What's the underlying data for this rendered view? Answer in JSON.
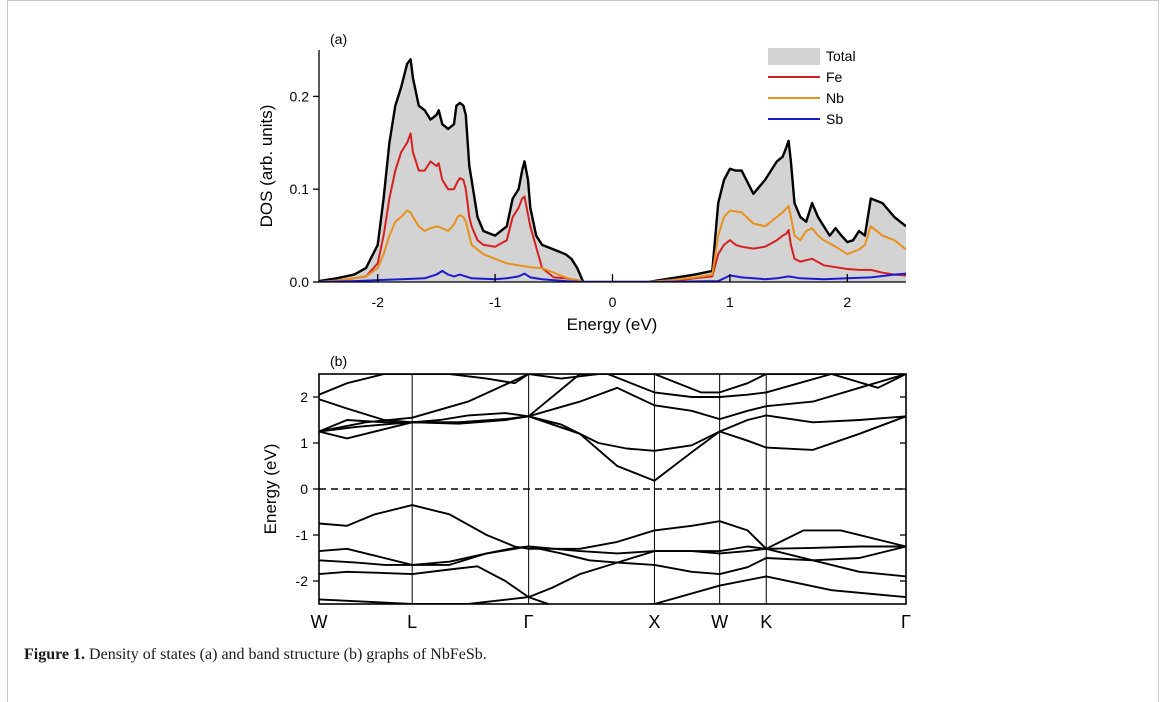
{
  "caption": {
    "label": "Figure 1.",
    "text": " Density of states (a) and band structure (b) graphs of NbFeSb."
  },
  "chart_data": [
    {
      "type": "area",
      "panel_label": "(a)",
      "xlabel": "Energy (eV)",
      "ylabel": "DOS (arb. units)",
      "xlim": [
        -2.5,
        2.5
      ],
      "ylim": [
        0,
        0.25
      ],
      "xticks": [
        -2,
        -1,
        0,
        1,
        2
      ],
      "xtick_labels": [
        "-2",
        "-1",
        "0",
        "1",
        "2"
      ],
      "yticks": [
        0.0,
        0.1,
        0.2
      ],
      "ytick_labels": [
        "0.0",
        "0.1",
        "0.2"
      ],
      "legend_position": "top-right",
      "series": [
        {
          "name": "Total",
          "color": "#000000",
          "fill": "#d3d3d3",
          "x": [
            -2.5,
            -2.35,
            -2.2,
            -2.1,
            -2.0,
            -1.95,
            -1.9,
            -1.85,
            -1.8,
            -1.75,
            -1.72,
            -1.7,
            -1.65,
            -1.6,
            -1.55,
            -1.5,
            -1.48,
            -1.45,
            -1.4,
            -1.35,
            -1.33,
            -1.3,
            -1.27,
            -1.25,
            -1.22,
            -1.2,
            -1.15,
            -1.1,
            -1.0,
            -0.9,
            -0.85,
            -0.8,
            -0.77,
            -0.75,
            -0.72,
            -0.7,
            -0.65,
            -0.6,
            -0.5,
            -0.4,
            -0.35,
            -0.3,
            -0.25,
            0.3,
            0.5,
            0.7,
            0.85,
            0.9,
            0.95,
            1.0,
            1.05,
            1.1,
            1.2,
            1.3,
            1.4,
            1.45,
            1.48,
            1.5,
            1.52,
            1.55,
            1.6,
            1.65,
            1.7,
            1.75,
            1.8,
            1.85,
            1.9,
            1.95,
            2.0,
            2.05,
            2.1,
            2.15,
            2.2,
            2.3,
            2.4,
            2.5
          ],
          "y": [
            0.001,
            0.004,
            0.008,
            0.015,
            0.04,
            0.09,
            0.15,
            0.19,
            0.21,
            0.235,
            0.24,
            0.22,
            0.19,
            0.185,
            0.175,
            0.18,
            0.185,
            0.17,
            0.165,
            0.17,
            0.19,
            0.193,
            0.19,
            0.18,
            0.125,
            0.11,
            0.07,
            0.055,
            0.05,
            0.06,
            0.09,
            0.1,
            0.12,
            0.13,
            0.11,
            0.08,
            0.05,
            0.04,
            0.035,
            0.03,
            0.025,
            0.015,
            0.0,
            0.0,
            0.004,
            0.008,
            0.012,
            0.085,
            0.11,
            0.122,
            0.12,
            0.12,
            0.095,
            0.11,
            0.13,
            0.135,
            0.145,
            0.152,
            0.13,
            0.085,
            0.07,
            0.065,
            0.085,
            0.07,
            0.06,
            0.05,
            0.058,
            0.05,
            0.043,
            0.045,
            0.055,
            0.05,
            0.09,
            0.085,
            0.07,
            0.06
          ]
        },
        {
          "name": "Fe",
          "color": "#d42020",
          "x": [
            -2.5,
            -2.3,
            -2.1,
            -2.0,
            -1.95,
            -1.9,
            -1.85,
            -1.8,
            -1.75,
            -1.72,
            -1.7,
            -1.65,
            -1.6,
            -1.55,
            -1.5,
            -1.48,
            -1.45,
            -1.4,
            -1.35,
            -1.32,
            -1.3,
            -1.27,
            -1.25,
            -1.22,
            -1.2,
            -1.15,
            -1.1,
            -1.0,
            -0.9,
            -0.85,
            -0.8,
            -0.77,
            -0.75,
            -0.7,
            -0.6,
            -0.5,
            -0.4,
            -0.3,
            -0.25,
            0.3,
            0.5,
            0.7,
            0.85,
            0.9,
            0.95,
            1.0,
            1.05,
            1.1,
            1.2,
            1.3,
            1.4,
            1.45,
            1.48,
            1.5,
            1.52,
            1.55,
            1.6,
            1.7,
            1.8,
            1.9,
            2.0,
            2.1,
            2.2,
            2.3,
            2.4,
            2.5
          ],
          "y": [
            0.0,
            0.002,
            0.006,
            0.02,
            0.05,
            0.09,
            0.12,
            0.14,
            0.15,
            0.16,
            0.14,
            0.12,
            0.12,
            0.13,
            0.125,
            0.128,
            0.11,
            0.1,
            0.1,
            0.108,
            0.112,
            0.11,
            0.1,
            0.07,
            0.06,
            0.045,
            0.04,
            0.038,
            0.045,
            0.07,
            0.08,
            0.09,
            0.092,
            0.06,
            0.015,
            0.005,
            0.004,
            0.002,
            0.0,
            0.0,
            0.001,
            0.004,
            0.006,
            0.03,
            0.04,
            0.045,
            0.04,
            0.038,
            0.036,
            0.038,
            0.045,
            0.05,
            0.052,
            0.056,
            0.04,
            0.025,
            0.022,
            0.025,
            0.018,
            0.016,
            0.014,
            0.013,
            0.013,
            0.01,
            0.008,
            0.007
          ]
        },
        {
          "name": "Nb",
          "color": "#e8901c",
          "x": [
            -2.5,
            -2.3,
            -2.1,
            -2.0,
            -1.95,
            -1.9,
            -1.85,
            -1.8,
            -1.75,
            -1.72,
            -1.7,
            -1.65,
            -1.6,
            -1.55,
            -1.5,
            -1.45,
            -1.4,
            -1.35,
            -1.32,
            -1.3,
            -1.27,
            -1.25,
            -1.22,
            -1.2,
            -1.15,
            -1.1,
            -1.0,
            -0.9,
            -0.8,
            -0.7,
            -0.6,
            -0.5,
            -0.4,
            -0.35,
            -0.3,
            -0.25,
            0.3,
            0.5,
            0.7,
            0.85,
            0.9,
            0.95,
            1.0,
            1.05,
            1.1,
            1.2,
            1.3,
            1.4,
            1.45,
            1.5,
            1.52,
            1.55,
            1.6,
            1.65,
            1.7,
            1.75,
            1.8,
            1.9,
            2.0,
            2.1,
            2.15,
            2.2,
            2.3,
            2.4,
            2.5
          ],
          "y": [
            0.0,
            0.002,
            0.006,
            0.015,
            0.03,
            0.05,
            0.065,
            0.07,
            0.077,
            0.075,
            0.07,
            0.06,
            0.055,
            0.058,
            0.06,
            0.058,
            0.055,
            0.062,
            0.07,
            0.072,
            0.07,
            0.065,
            0.05,
            0.04,
            0.035,
            0.03,
            0.025,
            0.02,
            0.018,
            0.016,
            0.015,
            0.01,
            0.005,
            0.003,
            0.002,
            0.0,
            0.0,
            0.002,
            0.005,
            0.008,
            0.05,
            0.07,
            0.077,
            0.076,
            0.075,
            0.063,
            0.06,
            0.07,
            0.075,
            0.082,
            0.07,
            0.05,
            0.045,
            0.055,
            0.058,
            0.05,
            0.045,
            0.038,
            0.03,
            0.035,
            0.04,
            0.06,
            0.05,
            0.045,
            0.035
          ]
        },
        {
          "name": "Sb",
          "color": "#1a1ad4",
          "x": [
            -2.5,
            -2.2,
            -2.0,
            -1.8,
            -1.6,
            -1.5,
            -1.45,
            -1.4,
            -1.35,
            -1.3,
            -1.2,
            -1.0,
            -0.9,
            -0.8,
            -0.75,
            -0.7,
            -0.6,
            -0.4,
            -0.25,
            0.3,
            0.9,
            1.0,
            1.05,
            1.1,
            1.2,
            1.3,
            1.4,
            1.5,
            1.6,
            1.8,
            2.0,
            2.2,
            2.4,
            2.5
          ],
          "y": [
            0.0,
            0.001,
            0.002,
            0.003,
            0.004,
            0.008,
            0.012,
            0.008,
            0.006,
            0.008,
            0.004,
            0.003,
            0.004,
            0.006,
            0.009,
            0.005,
            0.003,
            0.001,
            0.0,
            0.0,
            0.001,
            0.007,
            0.006,
            0.005,
            0.004,
            0.003,
            0.004,
            0.006,
            0.004,
            0.003,
            0.004,
            0.005,
            0.008,
            0.009
          ]
        }
      ]
    },
    {
      "type": "line",
      "panel_label": "(b)",
      "ylabel": "Energy (eV)",
      "ylim": [
        -2.5,
        2.5
      ],
      "yticks": [
        -2,
        -1,
        0,
        1,
        2
      ],
      "ytick_labels": [
        "-2",
        "-1",
        "0",
        "1",
        "2"
      ],
      "k_points": [
        {
          "label": "W",
          "x": 0
        },
        {
          "label": "L",
          "x": 1
        },
        {
          "label": "Γ",
          "x": 2.25
        },
        {
          "label": "X",
          "x": 3.6
        },
        {
          "label": "W",
          "x": 4.3
        },
        {
          "label": "K",
          "x": 4.8
        },
        {
          "label": "Γ",
          "x": 6.3
        }
      ],
      "fermi_level": 0,
      "bands": [
        {
          "x": [
            0,
            0.5,
            1,
            1.6,
            2.25
          ],
          "y": [
            -2.4,
            -2.45,
            -2.5,
            -2.5,
            -2.35
          ]
        },
        {
          "x": [
            2.25,
            2.6,
            3.0,
            3.6,
            4.3,
            4.8,
            5.5,
            6.3
          ],
          "y": [
            -2.35,
            -2.6,
            -2.6,
            -2.5,
            -2.1,
            -1.9,
            -2.2,
            -2.35
          ]
        },
        {
          "x": [
            0,
            0.3,
            0.6,
            1,
            1.4,
            1.7,
            2.0,
            2.25
          ],
          "y": [
            -1.85,
            -1.8,
            -1.82,
            -1.85,
            -1.75,
            -1.68,
            -2.0,
            -2.35
          ]
        },
        {
          "x": [
            2.25,
            2.5,
            2.8,
            3.2,
            3.6
          ],
          "y": [
            -2.35,
            -2.15,
            -1.85,
            -1.6,
            -1.35
          ]
        },
        {
          "x": [
            3.6,
            4.0,
            4.3,
            4.6,
            4.8,
            5.3,
            5.8,
            6.3
          ],
          "y": [
            -1.35,
            -1.35,
            -1.4,
            -1.35,
            -1.3,
            -1.28,
            -1.25,
            -1.25
          ]
        },
        {
          "x": [
            0,
            0.4,
            0.7,
            1,
            1.4,
            1.8,
            2.1,
            2.25
          ],
          "y": [
            -1.55,
            -1.6,
            -1.65,
            -1.65,
            -1.58,
            -1.4,
            -1.28,
            -1.25
          ]
        },
        {
          "x": [
            2.25,
            2.6,
            2.9,
            3.2,
            3.6
          ],
          "y": [
            -1.25,
            -1.4,
            -1.55,
            -1.6,
            -1.65
          ]
        },
        {
          "x": [
            3.6,
            4.0,
            4.3,
            4.6,
            4.8,
            5.3,
            5.8,
            6.3
          ],
          "y": [
            -1.65,
            -1.8,
            -1.85,
            -1.7,
            -1.5,
            -1.55,
            -1.8,
            -1.9
          ]
        },
        {
          "x": [
            0,
            0.3,
            0.6,
            1,
            1.4,
            1.8,
            2.1,
            2.25
          ],
          "y": [
            -1.35,
            -1.3,
            -1.45,
            -1.65,
            -1.65,
            -1.4,
            -1.3,
            -1.25
          ]
        },
        {
          "x": [
            2.25,
            2.8,
            3.2,
            3.6,
            4.0,
            4.3,
            4.6,
            4.8,
            5.2,
            5.6,
            6.3
          ],
          "y": [
            -1.25,
            -1.35,
            -1.4,
            -1.35,
            -1.35,
            -1.35,
            -1.25,
            -1.3,
            -0.9,
            -0.9,
            -1.25
          ]
        },
        {
          "x": [
            0,
            0.3,
            0.6,
            1,
            1.4,
            1.8,
            2.1,
            2.25
          ],
          "y": [
            -0.75,
            -0.8,
            -0.55,
            -0.35,
            -0.55,
            -1.0,
            -1.25,
            -1.3
          ]
        },
        {
          "x": [
            2.25,
            2.8,
            3.2,
            3.6,
            4.0,
            4.3,
            4.6,
            4.8,
            5.3,
            5.8,
            6.3
          ],
          "y": [
            -1.3,
            -1.3,
            -1.15,
            -0.9,
            -0.8,
            -0.7,
            -0.9,
            -1.3,
            -1.55,
            -1.5,
            -1.25
          ]
        },
        {
          "x": [
            0,
            0.4,
            0.8,
            1,
            1.5,
            2.0,
            2.25
          ],
          "y": [
            1.25,
            1.35,
            1.42,
            1.45,
            1.42,
            1.5,
            1.58
          ]
        },
        {
          "x": [
            2.25,
            2.6,
            3.0,
            3.3,
            3.6,
            4.0,
            4.3
          ],
          "y": [
            1.58,
            1.4,
            1.0,
            0.88,
            0.83,
            0.95,
            1.25
          ]
        },
        {
          "x": [
            4.3,
            4.6,
            4.8,
            5.3,
            5.8,
            6.3
          ],
          "y": [
            1.25,
            1.05,
            0.9,
            0.85,
            1.2,
            1.58
          ]
        },
        {
          "x": [
            0,
            0.5,
            1,
            1.6,
            2.25
          ],
          "y": [
            1.25,
            1.45,
            1.55,
            1.9,
            2.5
          ]
        },
        {
          "x": [
            0,
            0.3,
            0.7,
            1,
            1.5,
            2.0,
            2.25
          ],
          "y": [
            1.25,
            1.5,
            1.45,
            1.45,
            1.45,
            1.52,
            1.58
          ]
        },
        {
          "x": [
            2.25,
            2.8,
            3.2,
            3.6,
            4.0,
            4.3
          ],
          "y": [
            1.58,
            1.2,
            0.5,
            0.18,
            0.8,
            1.25
          ]
        },
        {
          "x": [
            4.3,
            4.6,
            4.8,
            5.3,
            5.8,
            6.3
          ],
          "y": [
            1.25,
            1.5,
            1.6,
            1.45,
            1.5,
            1.58
          ]
        },
        {
          "x": [
            0,
            0.3,
            0.7,
            1,
            1.5,
            2.0,
            2.25
          ],
          "y": [
            1.25,
            1.1,
            1.3,
            1.45,
            1.45,
            1.52,
            1.58
          ]
        },
        {
          "x": [
            2.25,
            2.8,
            3.2,
            3.6,
            4.0,
            4.3
          ],
          "y": [
            1.58,
            1.9,
            2.2,
            1.82,
            1.7,
            1.52
          ]
        },
        {
          "x": [
            4.3,
            4.6,
            4.8,
            5.3,
            5.8,
            6.3
          ],
          "y": [
            1.52,
            1.7,
            1.8,
            1.9,
            2.2,
            2.5
          ]
        },
        {
          "x": [
            0,
            0.3,
            0.7,
            1,
            1.3,
            1.6,
            2.0,
            2.25
          ],
          "y": [
            1.95,
            1.75,
            1.5,
            1.45,
            1.5,
            1.6,
            1.65,
            1.58
          ]
        },
        {
          "x": [
            2.25,
            2.8,
            3.1,
            3.6,
            4.0,
            4.3,
            4.6,
            4.8,
            5.5,
            6.0,
            6.3
          ],
          "y": [
            1.58,
            2.5,
            2.5,
            2.1,
            2.0,
            2.0,
            2.05,
            2.1,
            2.5,
            2.2,
            2.5
          ]
        },
        {
          "x": [
            0,
            0.3,
            0.7,
            1,
            1.4,
            1.8,
            2.1,
            2.25
          ],
          "y": [
            2.05,
            2.3,
            2.5,
            2.5,
            2.5,
            2.4,
            2.3,
            2.5
          ]
        },
        {
          "x": [
            2.25,
            2.6,
            3.0,
            3.6,
            4.1,
            4.3,
            4.6,
            4.8,
            5.4,
            6.3
          ],
          "y": [
            2.5,
            2.4,
            2.5,
            2.5,
            2.1,
            2.1,
            2.3,
            2.5,
            2.5,
            2.5
          ]
        }
      ]
    }
  ]
}
